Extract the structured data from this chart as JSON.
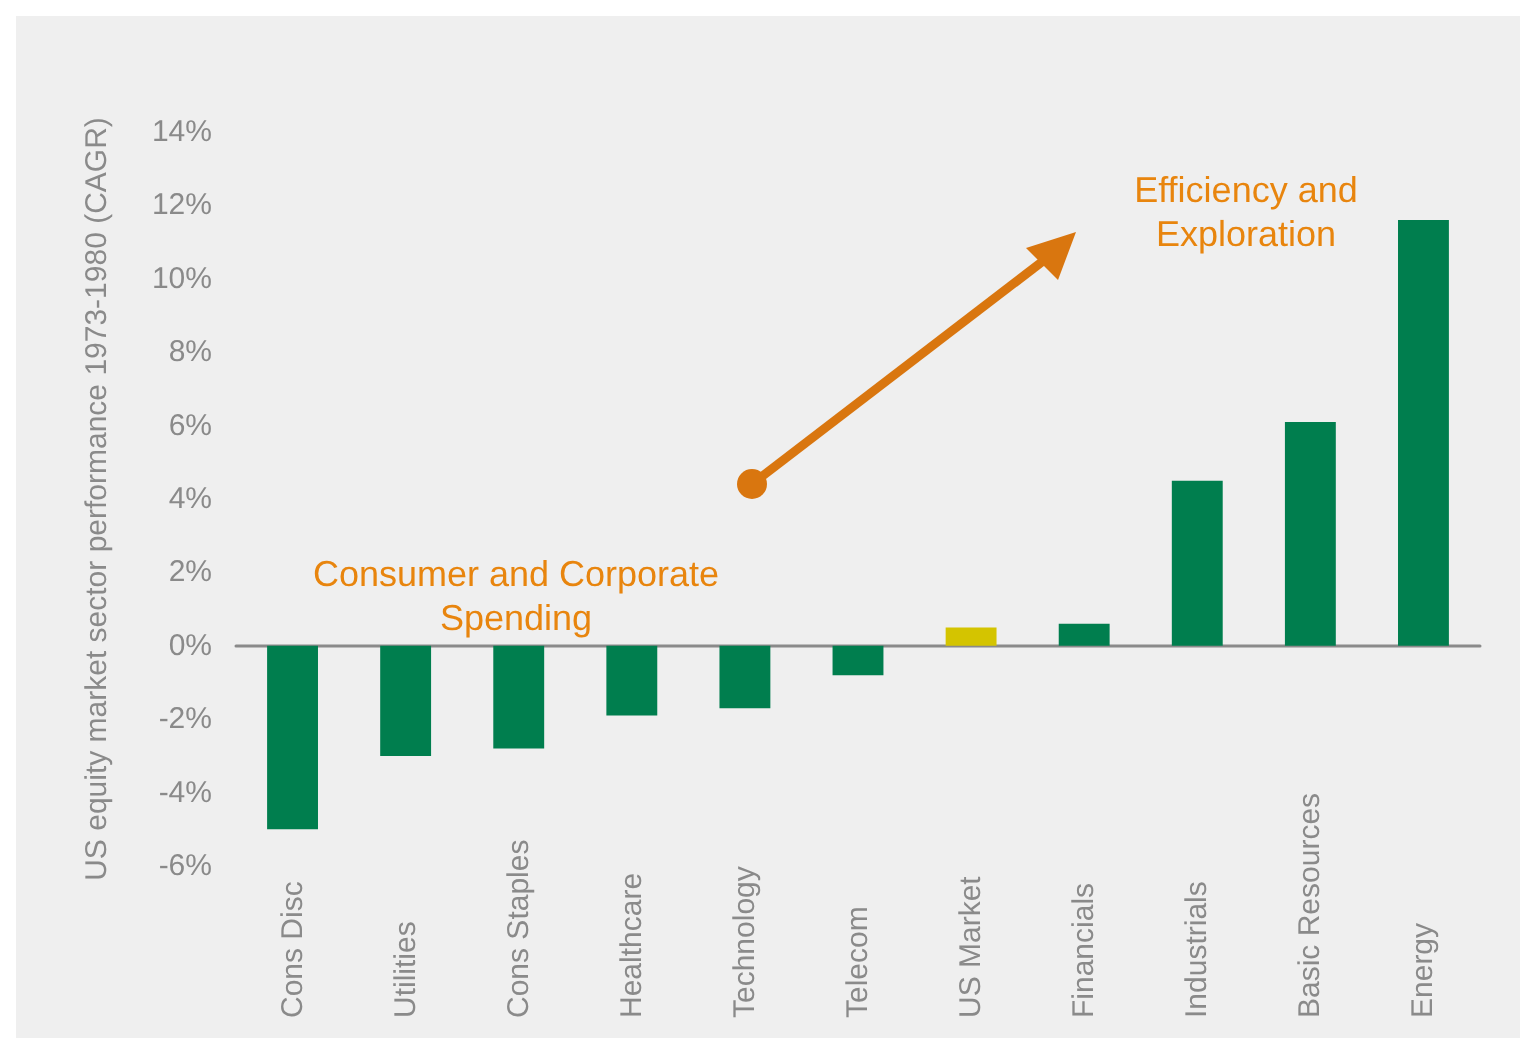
{
  "chart_data": {
    "type": "bar",
    "ylabel": "US equity market sector performance 1973-1980 (CAGR)",
    "categories": [
      "Cons Disc",
      "Utilities",
      "Cons Staples",
      "Healthcare",
      "Technology",
      "Telecom",
      "US Market",
      "Financials",
      "Industrials",
      "Basic Resources",
      "Energy"
    ],
    "values": [
      -5.0,
      -3.0,
      -2.8,
      -1.9,
      -1.7,
      -0.8,
      0.5,
      0.6,
      4.5,
      6.1,
      11.6
    ],
    "colors": [
      "#007e4e",
      "#007e4e",
      "#007e4e",
      "#007e4e",
      "#007e4e",
      "#007e4e",
      "#d4c400",
      "#007e4e",
      "#007e4e",
      "#007e4e",
      "#007e4e"
    ],
    "ylim": [
      -6,
      14
    ],
    "yticks": [
      {
        "value": -6,
        "label": "-6%"
      },
      {
        "value": -4,
        "label": "-4%"
      },
      {
        "value": -2,
        "label": "-2%"
      },
      {
        "value": 0,
        "label": "0%"
      },
      {
        "value": 2,
        "label": "2%"
      },
      {
        "value": 4,
        "label": "4%"
      },
      {
        "value": 6,
        "label": "6%"
      },
      {
        "value": 8,
        "label": "8%"
      },
      {
        "value": 10,
        "label": "10%"
      },
      {
        "value": 12,
        "label": "12%"
      },
      {
        "value": 14,
        "label": "14%"
      }
    ],
    "annotations": [
      "Consumer and Corporate\nSpending",
      "Efficiency and\nExploration"
    ]
  }
}
